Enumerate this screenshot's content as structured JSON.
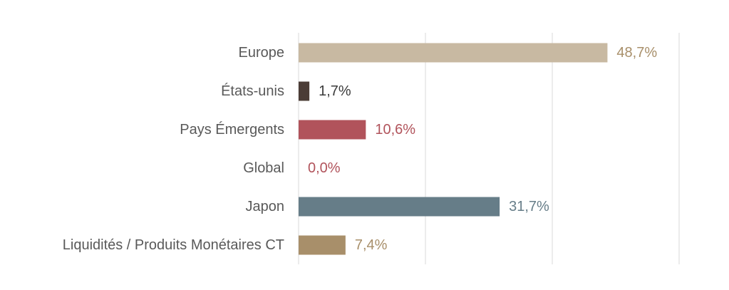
{
  "chart_data": {
    "type": "bar",
    "orientation": "horizontal",
    "title": "",
    "xlabel": "",
    "ylabel": "",
    "xlim": [
      0,
      60
    ],
    "grid": true,
    "legend": "none",
    "categories": [
      "Europe",
      "États-unis",
      "Pays Émergents",
      "Global",
      "Japon",
      "Liquidités / Produits Monétaires CT"
    ],
    "values": [
      48.7,
      1.7,
      10.6,
      0.0,
      31.7,
      7.4
    ],
    "value_labels": [
      "48,7%",
      "1,7%",
      "10,6%",
      "0,0%",
      "31,7%",
      "7,4%"
    ],
    "colors": [
      "#c8b9a2",
      "#4b3c36",
      "#b1535b",
      "#b1535b",
      "#667d88",
      "#a88f6a"
    ],
    "label_colors": [
      "#a88f6a",
      "#3a3a3a",
      "#b1535b",
      "#b1535b",
      "#667d88",
      "#a88f6a"
    ]
  }
}
